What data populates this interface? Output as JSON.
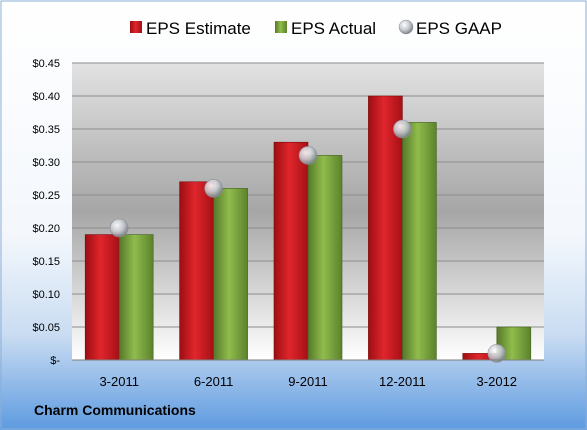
{
  "chart_data": {
    "type": "bar",
    "categories": [
      "3-2011",
      "6-2011",
      "9-2011",
      "12-2011",
      "3-2012"
    ],
    "series": [
      {
        "name": "EPS Estimate",
        "type": "bar",
        "color": "#c0141c",
        "values": [
          0.19,
          0.27,
          0.33,
          0.4,
          0.01
        ]
      },
      {
        "name": "EPS Actual",
        "type": "bar",
        "color": "#6f9a34",
        "values": [
          0.19,
          0.26,
          0.31,
          0.36,
          0.05
        ]
      },
      {
        "name": "EPS GAAP",
        "type": "marker",
        "color": "#b8bcc4",
        "values": [
          0.2,
          0.26,
          0.31,
          0.35,
          0.01
        ]
      }
    ],
    "ylim": [
      0,
      0.45
    ],
    "yticks": [
      0,
      0.05,
      0.1,
      0.15,
      0.2,
      0.25,
      0.3,
      0.35,
      0.4,
      0.45
    ],
    "ytick_labels": [
      "$-",
      "$0.05",
      "$0.10",
      "$0.15",
      "$0.20",
      "$0.25",
      "$0.30",
      "$0.35",
      "$0.40",
      "$0.45"
    ],
    "grid": true,
    "legend_position": "top",
    "footer": "Charm Communications"
  }
}
